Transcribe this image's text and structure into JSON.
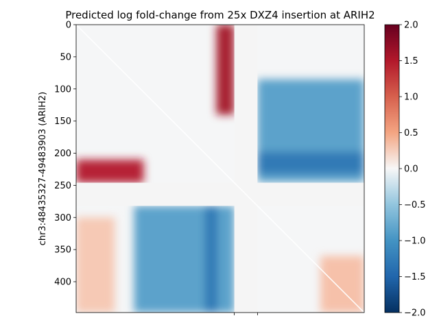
{
  "chart_data": {
    "type": "heatmap",
    "title": "Predicted log fold-change from 25x DXZ4 insertion at ARIH2",
    "ylabel": "chr3:48435327-49483903 (ARIH2)",
    "xlabel": "",
    "matrix_size": 448,
    "yticks": [
      0,
      50,
      100,
      150,
      200,
      250,
      300,
      350,
      400
    ],
    "ytick_labels": [
      "0",
      "50",
      "100",
      "150",
      "200",
      "250",
      "300",
      "350",
      "400"
    ],
    "xticks_unlabeled": [
      246,
      282
    ],
    "masked_bins": [
      246,
      282
    ],
    "diagonal_line_color": "#ffffff",
    "colorbar": {
      "vmin": -2.0,
      "vmax": 2.0,
      "colormap": "RdBu_r",
      "ticks": [
        2.0,
        1.5,
        1.0,
        0.5,
        0.0,
        -0.5,
        -1.0,
        -1.5,
        -2.0
      ],
      "tick_labels": [
        "2.0",
        "1.5",
        "1.0",
        "0.5",
        "0.0",
        "−0.5",
        "−1.0",
        "−1.5",
        "−2.0"
      ]
    },
    "features": [
      {
        "name": "red stripe near insertion",
        "rows": [
          0,
          140
        ],
        "cols": [
          218,
          246
        ],
        "value": 1.6
      },
      {
        "name": "red block lower-left",
        "rows": [
          210,
          246
        ],
        "cols": [
          0,
          105
        ],
        "value": 1.5
      },
      {
        "name": "blue domain upper-right",
        "rows": [
          85,
          245
        ],
        "cols": [
          282,
          448
        ],
        "value": -0.9
      },
      {
        "name": "blue stripe",
        "rows": [
          198,
          232
        ],
        "cols": [
          282,
          448
        ],
        "value": -1.3
      },
      {
        "name": "blue domain lower-middle",
        "rows": [
          282,
          448
        ],
        "cols": [
          90,
          246
        ],
        "value": -0.9
      },
      {
        "name": "blue stripe vertical",
        "rows": [
          282,
          448
        ],
        "cols": [
          200,
          220
        ],
        "value": -1.3
      },
      {
        "name": "faint red lower-left",
        "rows": [
          300,
          448
        ],
        "cols": [
          0,
          60
        ],
        "value": 0.3
      },
      {
        "name": "faint red lower-right",
        "rows": [
          360,
          448
        ],
        "cols": [
          380,
          448
        ],
        "value": 0.35
      }
    ]
  }
}
